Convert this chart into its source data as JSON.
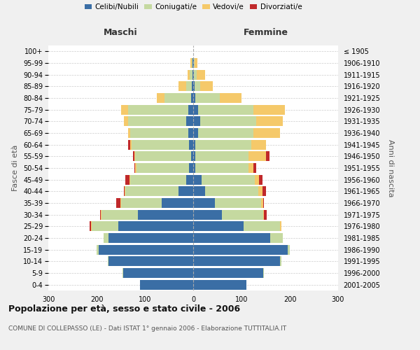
{
  "age_groups": [
    "0-4",
    "5-9",
    "10-14",
    "15-19",
    "20-24",
    "25-29",
    "30-34",
    "35-39",
    "40-44",
    "45-49",
    "50-54",
    "55-59",
    "60-64",
    "65-69",
    "70-74",
    "75-79",
    "80-84",
    "85-89",
    "90-94",
    "95-99",
    "100+"
  ],
  "birth_years": [
    "2001-2005",
    "1996-2000",
    "1991-1995",
    "1986-1990",
    "1981-1985",
    "1976-1980",
    "1971-1975",
    "1966-1970",
    "1961-1965",
    "1956-1960",
    "1951-1955",
    "1946-1950",
    "1941-1945",
    "1936-1940",
    "1931-1935",
    "1926-1930",
    "1921-1925",
    "1916-1920",
    "1911-1915",
    "1906-1910",
    "≤ 1905"
  ],
  "maschi": {
    "celibi": [
      110,
      145,
      175,
      195,
      175,
      155,
      115,
      65,
      30,
      15,
      8,
      5,
      8,
      10,
      15,
      10,
      5,
      3,
      2,
      1,
      0
    ],
    "coniugati": [
      0,
      2,
      2,
      5,
      10,
      55,
      75,
      85,
      110,
      115,
      110,
      115,
      120,
      120,
      120,
      125,
      55,
      12,
      5,
      2,
      0
    ],
    "vedovi": [
      0,
      0,
      0,
      0,
      0,
      2,
      1,
      1,
      2,
      2,
      2,
      2,
      2,
      5,
      8,
      15,
      15,
      15,
      5,
      3,
      0
    ],
    "divorziati": [
      0,
      0,
      0,
      0,
      0,
      2,
      2,
      8,
      2,
      8,
      2,
      2,
      5,
      0,
      0,
      0,
      0,
      0,
      0,
      0,
      0
    ]
  },
  "femmine": {
    "nubili": [
      110,
      145,
      180,
      195,
      160,
      105,
      60,
      45,
      25,
      18,
      5,
      5,
      5,
      10,
      15,
      10,
      5,
      3,
      2,
      1,
      0
    ],
    "coniugate": [
      0,
      2,
      2,
      5,
      25,
      75,
      85,
      95,
      110,
      110,
      110,
      110,
      115,
      115,
      115,
      115,
      50,
      12,
      5,
      2,
      0
    ],
    "vedove": [
      0,
      0,
      0,
      0,
      0,
      2,
      2,
      5,
      8,
      8,
      10,
      35,
      30,
      55,
      55,
      65,
      45,
      25,
      18,
      5,
      0
    ],
    "divorziate": [
      0,
      0,
      0,
      0,
      0,
      0,
      5,
      2,
      8,
      8,
      5,
      8,
      0,
      0,
      0,
      0,
      0,
      0,
      0,
      0,
      0
    ]
  },
  "colors": {
    "celibi": "#3A6EA5",
    "coniugati": "#C5D9A0",
    "vedovi": "#F5C96A",
    "divorziati": "#C0282A"
  },
  "title": "Popolazione per età, sesso e stato civile - 2006",
  "subtitle": "COMUNE DI COLLEPASSO (LE) - Dati ISTAT 1° gennaio 2006 - Elaborazione TUTTITALIA.IT",
  "xlabel_left": "Maschi",
  "xlabel_right": "Femmine",
  "ylabel_left": "Fasce di età",
  "ylabel_right": "Anni di nascita",
  "xlim": 300,
  "bg_color": "#f0f0f0",
  "plot_bg": "#ffffff"
}
